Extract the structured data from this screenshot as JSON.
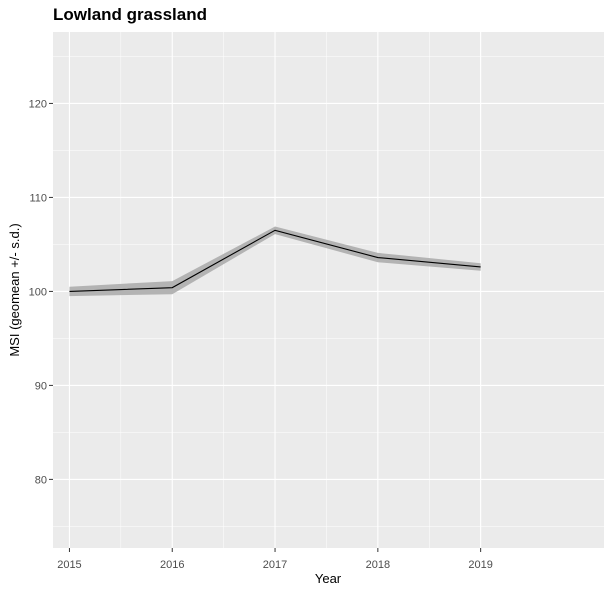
{
  "chart_data": {
    "type": "line",
    "title": "Lowland grassland",
    "xlabel": "Year",
    "ylabel": "MSI (geomean +/- s.d.)",
    "x": [
      2015,
      2016,
      2017,
      2018,
      2019
    ],
    "series": [
      {
        "values": [
          100.0,
          100.4,
          106.5,
          103.6,
          102.6
        ],
        "lower": [
          99.5,
          99.7,
          106.1,
          103.1,
          102.2
        ],
        "upper": [
          100.5,
          101.1,
          106.9,
          104.1,
          103.0
        ]
      }
    ],
    "xlim": [
      2014.84,
      2020.2
    ],
    "ylim": [
      72.7,
      127.6
    ],
    "x_ticks": [
      2015,
      2016,
      2017,
      2018,
      2019
    ],
    "y_ticks": [
      80,
      90,
      100,
      110,
      120
    ],
    "grid": true,
    "colors": {
      "panel_background": "#ebebeb",
      "grid": "#ffffff",
      "line": "#000000",
      "ribbon": "#b3b3b3"
    }
  }
}
